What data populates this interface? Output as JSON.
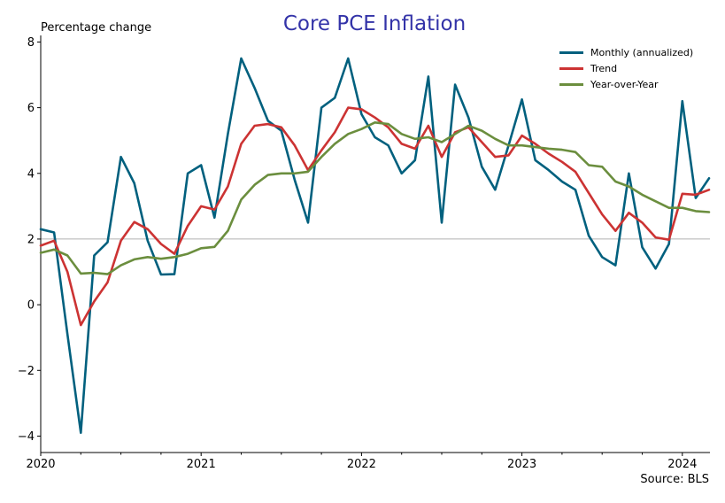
{
  "chart_data": {
    "type": "line",
    "title": "Core PCE Inflation",
    "ylabel": "Percentage change",
    "source": "Source: BLS",
    "ylim": [
      -4.5,
      8.2
    ],
    "yticks": [
      -4,
      -2,
      0,
      2,
      4,
      6,
      8
    ],
    "ytick_labels": [
      "−4",
      "−2",
      "0",
      "2",
      "4",
      "6",
      "8"
    ],
    "xticks": [
      "2020",
      "2021",
      "2022",
      "2023",
      "2024"
    ],
    "reference_line": 2,
    "legend_position": "top-right",
    "x": [
      "2020-01",
      "2020-02",
      "2020-03",
      "2020-04",
      "2020-05",
      "2020-06",
      "2020-07",
      "2020-08",
      "2020-09",
      "2020-10",
      "2020-11",
      "2020-12",
      "2021-01",
      "2021-02",
      "2021-03",
      "2021-04",
      "2021-05",
      "2021-06",
      "2021-07",
      "2021-08",
      "2021-09",
      "2021-10",
      "2021-11",
      "2021-12",
      "2022-01",
      "2022-02",
      "2022-03",
      "2022-04",
      "2022-05",
      "2022-06",
      "2022-07",
      "2022-08",
      "2022-09",
      "2022-10",
      "2022-11",
      "2022-12",
      "2023-01",
      "2023-02",
      "2023-03",
      "2023-04",
      "2023-05",
      "2023-06",
      "2023-07",
      "2023-08",
      "2023-09",
      "2023-10",
      "2023-11",
      "2023-12",
      "2024-01",
      "2024-02",
      "2024-03"
    ],
    "series": [
      {
        "name": "Monthly (annualized)",
        "color": "#00607e",
        "values": [
          2.3,
          2.2,
          -0.9,
          -3.9,
          1.5,
          1.9,
          4.5,
          3.7,
          1.95,
          0.92,
          0.93,
          4.0,
          4.25,
          2.65,
          5.2,
          7.5,
          6.6,
          5.6,
          5.3,
          3.8,
          2.5,
          6.0,
          6.3,
          7.5,
          5.8,
          5.1,
          4.85,
          4.0,
          4.4,
          6.95,
          2.5,
          6.7,
          5.7,
          4.2,
          3.5,
          4.85,
          6.25,
          4.4,
          4.1,
          3.75,
          3.5,
          2.1,
          1.45,
          1.2,
          4.0,
          1.75,
          1.1,
          1.85,
          6.2,
          3.25,
          3.85
        ]
      },
      {
        "name": "Trend",
        "color": "#cc3333",
        "values": [
          1.8,
          1.95,
          1.0,
          -0.62,
          0.1,
          0.68,
          1.95,
          2.52,
          2.3,
          1.85,
          1.55,
          2.4,
          3.0,
          2.9,
          3.6,
          4.9,
          5.45,
          5.5,
          5.4,
          4.85,
          4.1,
          4.7,
          5.25,
          6.0,
          5.95,
          5.7,
          5.4,
          4.9,
          4.75,
          5.45,
          4.5,
          5.25,
          5.4,
          4.95,
          4.5,
          4.55,
          5.15,
          4.9,
          4.6,
          4.35,
          4.05,
          3.4,
          2.75,
          2.25,
          2.8,
          2.5,
          2.05,
          1.98,
          3.38,
          3.35,
          3.5
        ]
      },
      {
        "name": "Year-over-Year",
        "color": "#6b8e3e",
        "values": [
          1.58,
          1.68,
          1.5,
          0.95,
          0.97,
          0.93,
          1.2,
          1.38,
          1.45,
          1.4,
          1.45,
          1.55,
          1.72,
          1.76,
          2.25,
          3.2,
          3.65,
          3.95,
          4.0,
          4.0,
          4.05,
          4.5,
          4.9,
          5.2,
          5.35,
          5.55,
          5.5,
          5.2,
          5.05,
          5.1,
          4.95,
          5.2,
          5.45,
          5.3,
          5.05,
          4.85,
          4.85,
          4.8,
          4.75,
          4.72,
          4.65,
          4.25,
          4.2,
          3.75,
          3.6,
          3.35,
          3.15,
          2.95,
          2.95,
          2.85,
          2.82
        ]
      }
    ]
  }
}
